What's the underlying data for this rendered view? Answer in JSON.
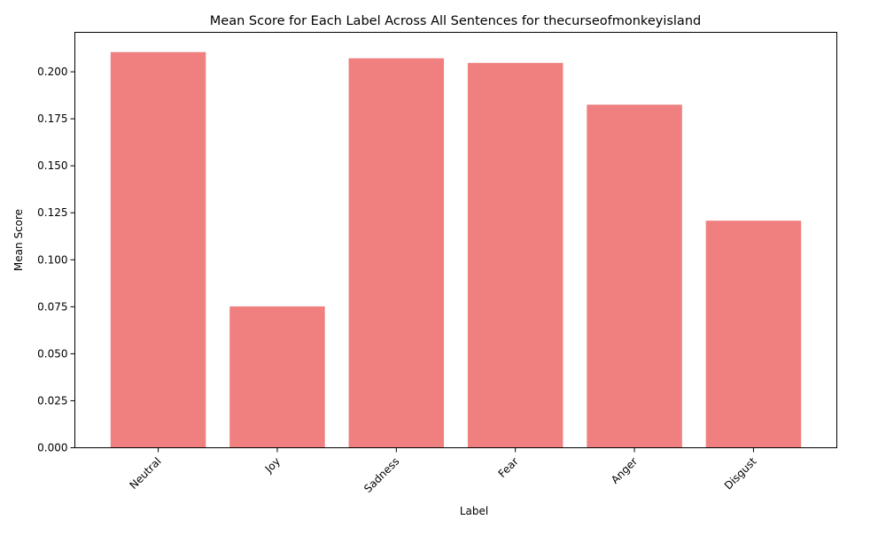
{
  "chart_data": {
    "type": "bar",
    "title": "Mean Score for Each Label Across All Sentences for thecurseofmonkeyisland",
    "xlabel": "Label",
    "ylabel": "Mean Score",
    "categories": [
      "Neutral",
      "Joy",
      "Sadness",
      "Fear",
      "Anger",
      "Disgust"
    ],
    "values": [
      0.2105,
      0.0752,
      0.2072,
      0.2047,
      0.1825,
      0.1208
    ],
    "ylim": [
      0,
      0.221
    ],
    "yticks": [
      0.0,
      0.025,
      0.05,
      0.075,
      0.1,
      0.125,
      0.15,
      0.175,
      0.2
    ],
    "ytick_labels": [
      "0.000",
      "0.025",
      "0.050",
      "0.075",
      "0.100",
      "0.125",
      "0.150",
      "0.175",
      "0.200"
    ],
    "bar_color": "#f08080",
    "grid": false,
    "legend": "none",
    "xtick_rotation": "45deg, right-aligned"
  }
}
